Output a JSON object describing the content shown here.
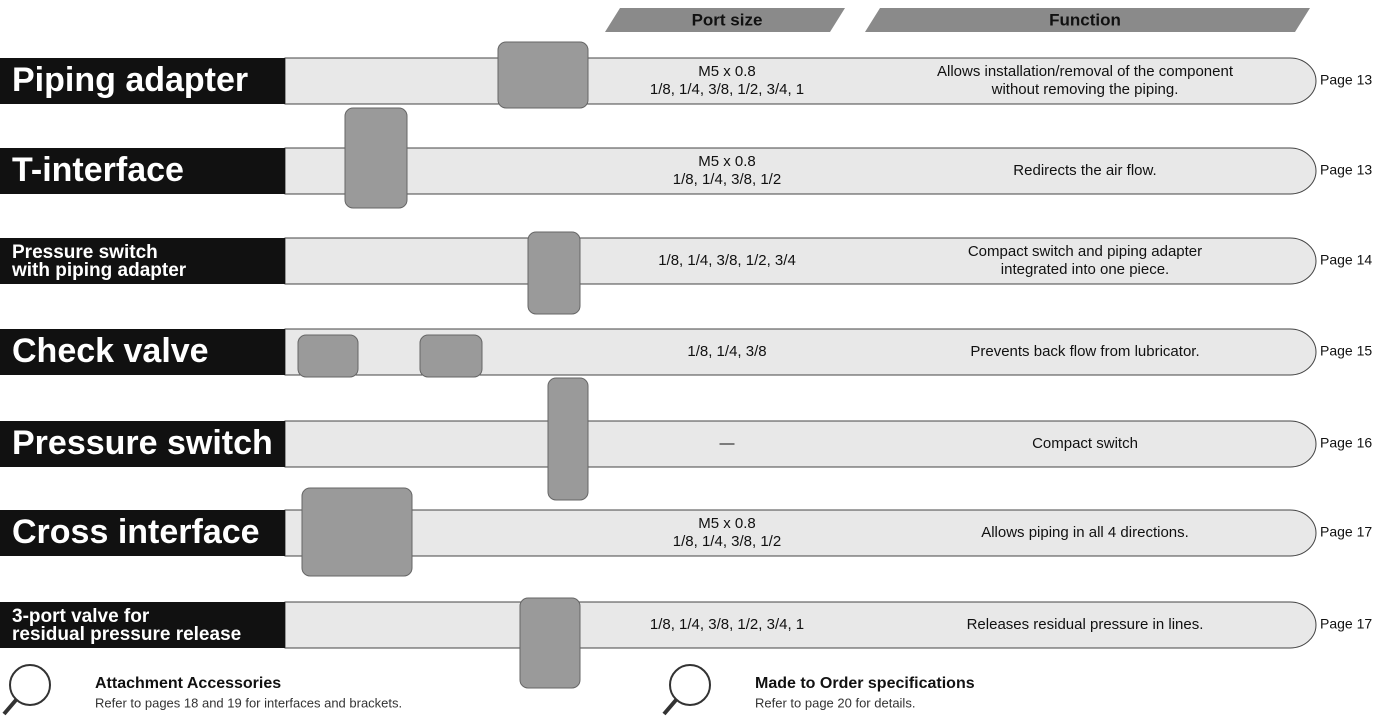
{
  "header": {
    "port_size": "Port size",
    "function": "Function"
  },
  "rows": [
    {
      "name": [
        "Piping adapter"
      ],
      "port_size": [
        "M5 x 0.8",
        "1/8, 1/4, 3/8, 1/2, 3/4, 1"
      ],
      "function": [
        "Allows installation/removal of the component",
        "without removing the piping."
      ],
      "page": "Page 13"
    },
    {
      "name": [
        "T-interface"
      ],
      "port_size": [
        "M5 x 0.8",
        "1/8, 1/4, 3/8, 1/2"
      ],
      "function": [
        "Redirects the air flow."
      ],
      "page": "Page 13"
    },
    {
      "name": [
        "Pressure switch",
        "with piping adapter"
      ],
      "port_size": [
        "1/8, 1/4, 3/8, 1/2, 3/4"
      ],
      "function": [
        "Compact switch and piping adapter",
        "integrated into one piece."
      ],
      "page": "Page 14"
    },
    {
      "name": [
        "Check valve"
      ],
      "port_size": [
        "1/8, 1/4, 3/8"
      ],
      "function": [
        "Prevents back flow from lubricator."
      ],
      "page": "Page 15"
    },
    {
      "name": [
        "Pressure switch"
      ],
      "port_size": [
        "—"
      ],
      "function": [
        "Compact switch"
      ],
      "page": "Page 16"
    },
    {
      "name": [
        "Cross interface"
      ],
      "port_size": [
        "M5 x 0.8",
        "1/8, 1/4, 3/8, 1/2"
      ],
      "function": [
        "Allows piping in all 4 directions."
      ],
      "page": "Page 17"
    },
    {
      "name": [
        "3-port valve for",
        "residual pressure release"
      ],
      "port_size": [
        "1/8, 1/4, 3/8, 1/2, 3/4, 1"
      ],
      "function": [
        "Releases residual pressure in lines."
      ],
      "page": "Page 17"
    }
  ],
  "notes": [
    {
      "title": "Attachment Accessories",
      "text": "Refer to pages 18 and 19 for interfaces and brackets."
    },
    {
      "title": "Made to Order specifications",
      "text": "Refer to page 20 for details."
    }
  ]
}
